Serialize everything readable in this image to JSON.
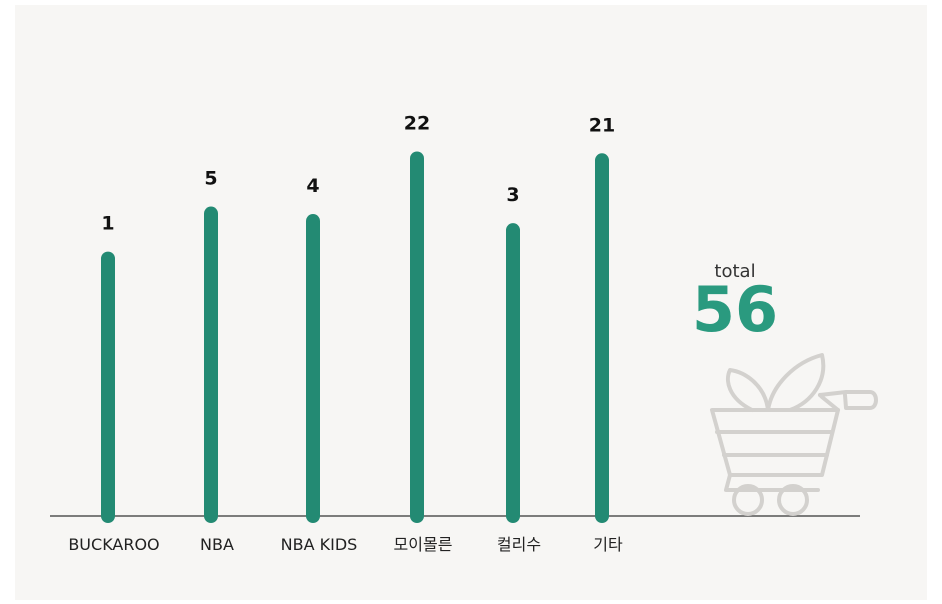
{
  "chart_data": {
    "type": "bar",
    "categories": [
      "BUCKAROO",
      "NBA",
      "NBA KIDS",
      "모이몰른",
      "컬리수",
      "기타"
    ],
    "values": [
      1,
      5,
      4,
      22,
      3,
      21
    ],
    "color": "#238a73",
    "total_label": "total",
    "total": 56,
    "total_color": "#2a9a7f"
  }
}
